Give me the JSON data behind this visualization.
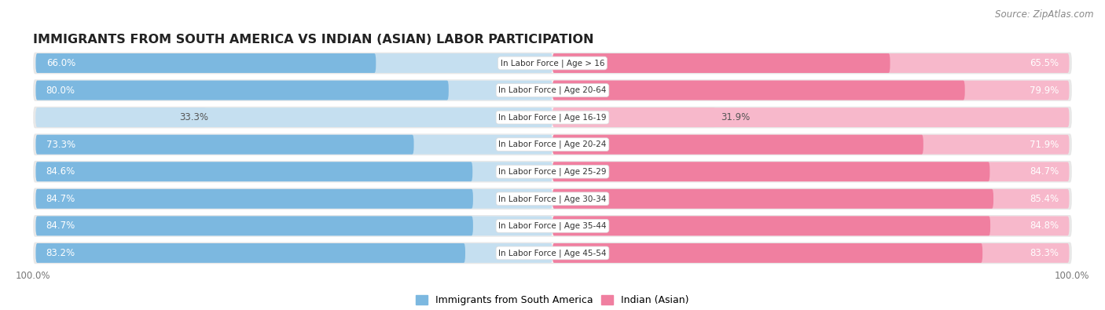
{
  "title": "IMMIGRANTS FROM SOUTH AMERICA VS INDIAN (ASIAN) LABOR PARTICIPATION",
  "source": "Source: ZipAtlas.com",
  "categories": [
    "In Labor Force | Age > 16",
    "In Labor Force | Age 20-64",
    "In Labor Force | Age 16-19",
    "In Labor Force | Age 20-24",
    "In Labor Force | Age 25-29",
    "In Labor Force | Age 30-34",
    "In Labor Force | Age 35-44",
    "In Labor Force | Age 45-54"
  ],
  "south_america_values": [
    66.0,
    80.0,
    33.3,
    73.3,
    84.6,
    84.7,
    84.7,
    83.2
  ],
  "indian_values": [
    65.5,
    79.9,
    31.9,
    71.9,
    84.7,
    85.4,
    84.8,
    83.3
  ],
  "sa_color_dark": "#7cb8e0",
  "sa_color_light": "#c5dff0",
  "ind_color_dark": "#f07fa0",
  "ind_color_light": "#f7b8cb",
  "row_outer_color": "#e8e8e8",
  "row_inner_color": "#f7f7f7",
  "legend_sa": "Immigrants from South America",
  "legend_indian": "Indian (Asian)",
  "max_value": 100.0,
  "fig_width": 14.06,
  "fig_height": 3.95,
  "title_fontsize": 11.5,
  "source_fontsize": 8.5,
  "bar_label_fontsize": 8.5,
  "category_fontsize": 7.5,
  "legend_fontsize": 9,
  "axis_label_fontsize": 8.5
}
